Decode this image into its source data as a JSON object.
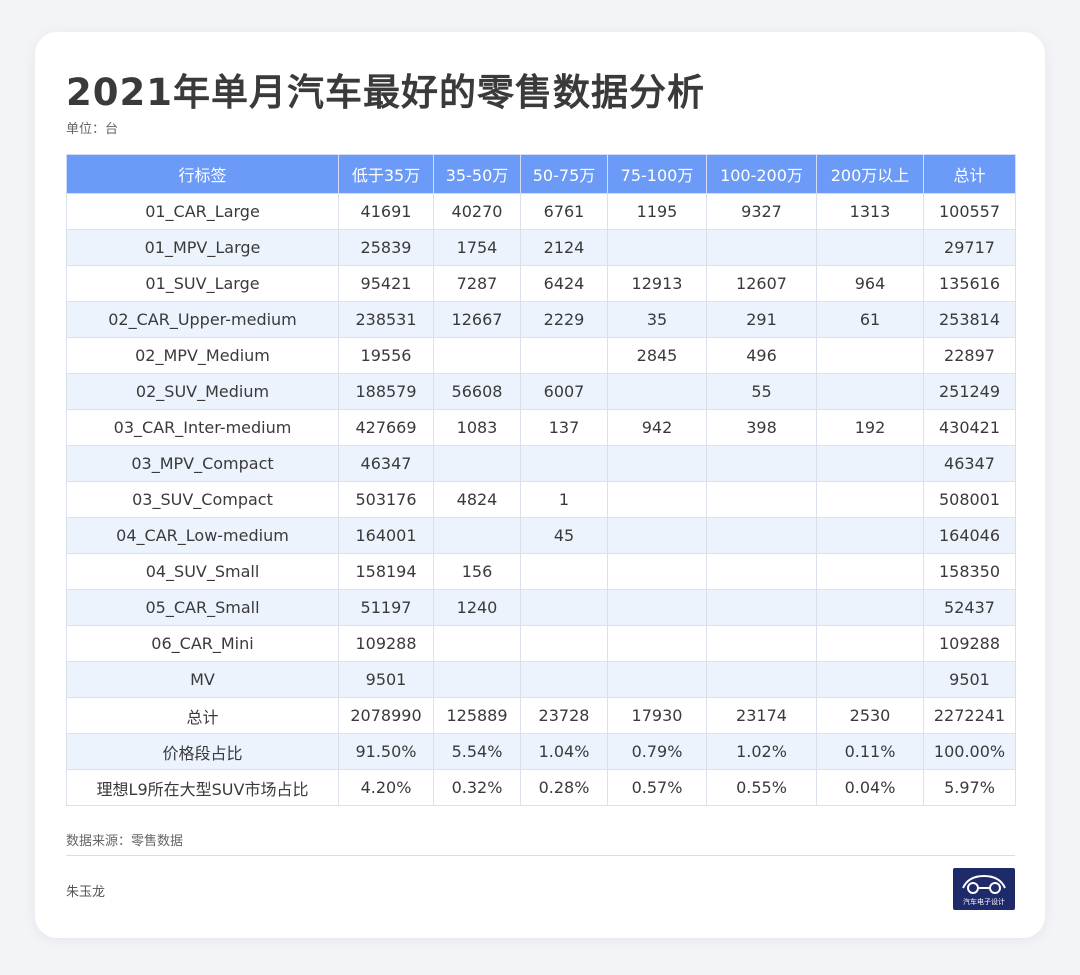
{
  "title": "2021年单月汽车最好的零售数据分析",
  "unit": "单位：台",
  "table": {
    "headers": [
      "行标签",
      "低于35万",
      "35-50万",
      "50-75万",
      "75-100万",
      "100-200万",
      "200万以上",
      "总计"
    ],
    "rows": [
      [
        "01_CAR_Large",
        "41691",
        "40270",
        "6761",
        "1195",
        "9327",
        "1313",
        "100557"
      ],
      [
        "01_MPV_Large",
        "25839",
        "1754",
        "2124",
        "",
        "",
        "",
        "29717"
      ],
      [
        "01_SUV_Large",
        "95421",
        "7287",
        "6424",
        "12913",
        "12607",
        "964",
        "135616"
      ],
      [
        "02_CAR_Upper-medium",
        "238531",
        "12667",
        "2229",
        "35",
        "291",
        "61",
        "253814"
      ],
      [
        "02_MPV_Medium",
        "19556",
        "",
        "",
        "2845",
        "496",
        "",
        "22897"
      ],
      [
        "02_SUV_Medium",
        "188579",
        "56608",
        "6007",
        "",
        "55",
        "",
        "251249"
      ],
      [
        "03_CAR_Inter-medium",
        "427669",
        "1083",
        "137",
        "942",
        "398",
        "192",
        "430421"
      ],
      [
        "03_MPV_Compact",
        "46347",
        "",
        "",
        "",
        "",
        "",
        "46347"
      ],
      [
        "03_SUV_Compact",
        "503176",
        "4824",
        "1",
        "",
        "",
        "",
        "508001"
      ],
      [
        "04_CAR_Low-medium",
        "164001",
        "",
        "45",
        "",
        "",
        "",
        "164046"
      ],
      [
        "04_SUV_Small",
        "158194",
        "156",
        "",
        "",
        "",
        "",
        "158350"
      ],
      [
        "05_CAR_Small",
        "51197",
        "1240",
        "",
        "",
        "",
        "",
        "52437"
      ],
      [
        "06_CAR_Mini",
        "109288",
        "",
        "",
        "",
        "",
        "",
        "109288"
      ],
      [
        "MV",
        "9501",
        "",
        "",
        "",
        "",
        "",
        "9501"
      ],
      [
        "总计",
        "2078990",
        "125889",
        "23728",
        "17930",
        "23174",
        "2530",
        "2272241"
      ],
      [
        "价格段占比",
        "91.50%",
        "5.54%",
        "1.04%",
        "0.79%",
        "1.02%",
        "0.11%",
        "100.00%"
      ],
      [
        "理想L9所在大型SUV市场占比",
        "4.20%",
        "0.32%",
        "0.28%",
        "0.57%",
        "0.55%",
        "0.04%",
        "5.97%"
      ]
    ]
  },
  "source": "数据来源：零售数据",
  "author": "朱玉龙",
  "logo": {
    "text": "汽车电子设计",
    "icon": "car-logo-icon"
  },
  "colors": {
    "header_bg": "#6b9bf6",
    "stripe_bg": "#edf3fd",
    "logo_bg": "#1f2a6b"
  }
}
